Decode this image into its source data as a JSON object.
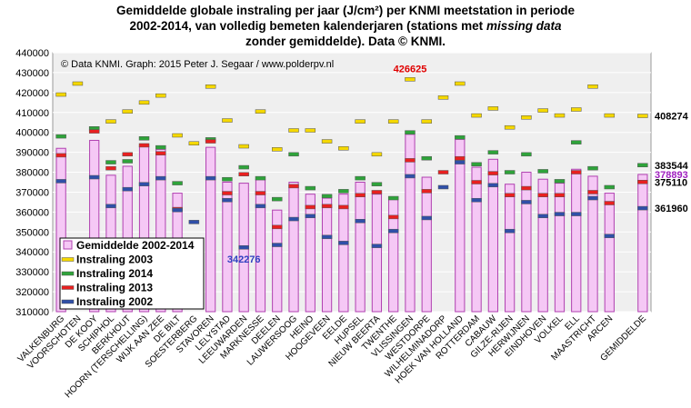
{
  "title": {
    "line1": "Gemiddelde globale instraling per jaar (J/cm²) per KNMI meetstation in periode",
    "line2_pre": "2002-2014, van volledig bemeten kalenderjaren (stations met ",
    "line2_em": "missing data",
    "line3": "zonder gemiddelde). Data © KNMI."
  },
  "credit": "© Data KNMI. Graph: 2015 Peter J. Segaar / www.polderpv.nl",
  "colors": {
    "bar_fill": "#f5c8f5",
    "bar_stroke": "#b040b0",
    "y2003": "#f5d800",
    "y2014": "#2ea33a",
    "y2013": "#e82020",
    "y2002": "#2f4fa8",
    "plot_bg": "#efefef",
    "grid": "#ffffff",
    "max_label": "#e00000",
    "min_label": "#2f3fbf",
    "avg_label": "#a020c0"
  },
  "chart_data": {
    "type": "bar",
    "ylim": [
      310000,
      440000
    ],
    "ytick_step": 10000,
    "grid": true,
    "legend_position": "bottom-left",
    "categories": [
      "VALKENBURG",
      "VOORSCHOTEN",
      "DE KOOY",
      "SCHIPHOL",
      "BERKHOUT",
      "HOORN (TERSCHELLING)",
      "WIJK AAN ZEE",
      "DE BILT",
      "SOESTERBERG",
      "STAVOREN",
      "LELYSTAD",
      "LEEUWARDEN",
      "MARKNESSE",
      "DEELEN",
      "LAUWERSOOG",
      "HEINO",
      "HOOGEVEEN",
      "EELDE",
      "HUPSEL",
      "NIEUW BEERTA",
      "TWENTHE",
      "VLISSINGEN",
      "WESTDORPE",
      "WILHELMINADORP",
      "HOEK VAN HOLLAND",
      "ROTTERDAM",
      "CABAUW",
      "GILZE-RIJEN",
      "HERWIJNEN",
      "EINDHOVEN",
      "VOLKEL",
      "ELL",
      "MAASTRICHT",
      "ARCEN",
      "",
      "GEMIDDELDE"
    ],
    "series": [
      {
        "name": "Gemiddelde 2002-2014",
        "values": [
          392000,
          null,
          396000,
          378500,
          383000,
          393000,
          391500,
          369500,
          null,
          392500,
          375000,
          374500,
          376500,
          361000,
          375000,
          369000,
          367000,
          369000,
          375000,
          369000,
          366500,
          399000,
          377500,
          null,
          396500,
          382500,
          386500,
          374000,
          380000,
          376500,
          374500,
          381500,
          378000,
          369500,
          null,
          378893
        ]
      },
      {
        "name": "Instraling 2003",
        "values": [
          419000,
          424500,
          402000,
          405500,
          410500,
          415000,
          418500,
          398500,
          394500,
          423000,
          406000,
          393000,
          410500,
          391500,
          401000,
          401000,
          395500,
          392000,
          405500,
          389000,
          405500,
          426625,
          405500,
          417500,
          424500,
          408500,
          412000,
          402500,
          407500,
          411000,
          408500,
          411500,
          423000,
          408500,
          null,
          408274
        ]
      },
      {
        "name": "Instraling 2014",
        "values": [
          398000,
          null,
          402000,
          385000,
          385500,
          397000,
          392500,
          374500,
          null,
          396500,
          376500,
          382500,
          377000,
          366500,
          389000,
          372000,
          368000,
          370500,
          377000,
          374000,
          367000,
          400000,
          387000,
          null,
          397500,
          384000,
          390000,
          380000,
          389000,
          380500,
          375500,
          395000,
          382000,
          372500,
          null,
          383544
        ]
      },
      {
        "name": "Instraling 2013",
        "values": [
          388500,
          null,
          400500,
          382000,
          389000,
          393500,
          389500,
          361500,
          null,
          395500,
          369500,
          379000,
          369500,
          352500,
          373000,
          362500,
          363000,
          362500,
          368500,
          370000,
          357500,
          386000,
          370500,
          380000,
          387000,
          375000,
          379500,
          368500,
          372000,
          368500,
          368500,
          380000,
          370000,
          364500,
          null,
          375110
        ]
      },
      {
        "name": "Instraling 2002",
        "values": [
          375500,
          null,
          377500,
          363000,
          371500,
          374000,
          377000,
          361000,
          355000,
          377000,
          366000,
          342276,
          363000,
          343500,
          356500,
          358000,
          347500,
          344500,
          355500,
          343000,
          350500,
          378000,
          357000,
          372500,
          385000,
          366000,
          373500,
          350500,
          365000,
          358000,
          359000,
          359000,
          367000,
          348000,
          null,
          361960
        ]
      }
    ],
    "annotations": {
      "max_value": "426625",
      "min_value": "342276",
      "right_labels": [
        "408274",
        "383544",
        "378893",
        "375110",
        "361960"
      ]
    }
  }
}
